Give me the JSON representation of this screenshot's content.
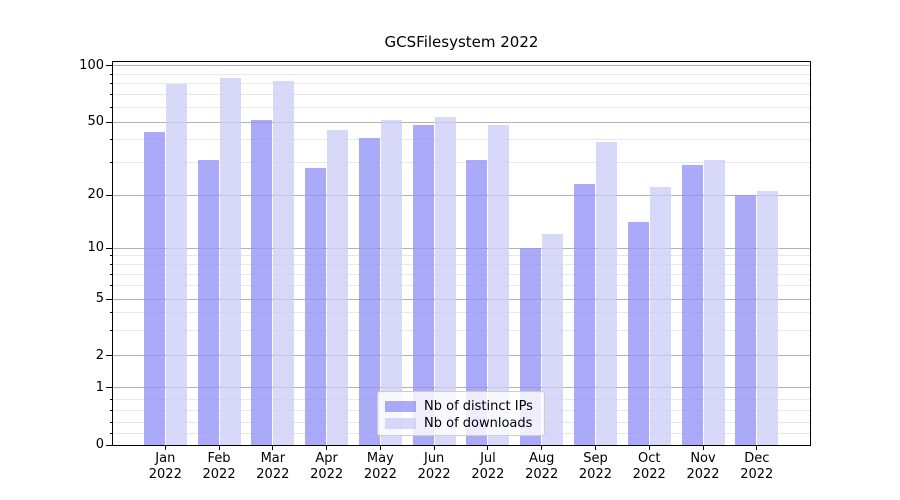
{
  "title": "GCSFilesystem 2022",
  "chart_data": {
    "type": "bar",
    "title": "GCSFilesystem 2022",
    "categories": [
      "Jan",
      "Feb",
      "Mar",
      "Apr",
      "May",
      "Jun",
      "Jul",
      "Aug",
      "Sep",
      "Oct",
      "Nov",
      "Dec"
    ],
    "category_year": "2022",
    "series": [
      {
        "name": "Nb of distinct IPs",
        "values": [
          44,
          31,
          51,
          28,
          41,
          48,
          31,
          10,
          23,
          14,
          29,
          20
        ],
        "color": "rgba(146,146,246,0.78)"
      },
      {
        "name": "Nb of downloads",
        "values": [
          80,
          86,
          83,
          45,
          51,
          53,
          48,
          12,
          39,
          22,
          31,
          21
        ],
        "color": "rgba(205,205,246,0.78)"
      }
    ],
    "yscale": "log-with-zero",
    "ylim": [
      0,
      100
    ],
    "yticks": [
      0,
      1,
      2,
      5,
      10,
      20,
      50,
      100
    ],
    "ytick_labels": [
      "0",
      "1",
      "2",
      "5",
      "10",
      "20",
      "50",
      "100"
    ],
    "minor_yticks": [
      0.2,
      0.4,
      0.6,
      0.8,
      3,
      4,
      6,
      7,
      8,
      9,
      30,
      40,
      60,
      70,
      80,
      90
    ],
    "grid": "horizontal-major-and-minor",
    "legend_position": "lower-center"
  },
  "colors": {
    "bar_distinct_ips": "rgba(146,146,246,0.78)",
    "bar_downloads": "rgba(205,205,246,0.78)",
    "grid_major": "#b2b2b2",
    "grid_minor": "#e8e8e8",
    "axis_spine": "#000000",
    "text": "#000000",
    "legend_bg": "rgba(255,255,255,0.8)",
    "legend_border": "#cccccc",
    "background": "#ffffff"
  }
}
